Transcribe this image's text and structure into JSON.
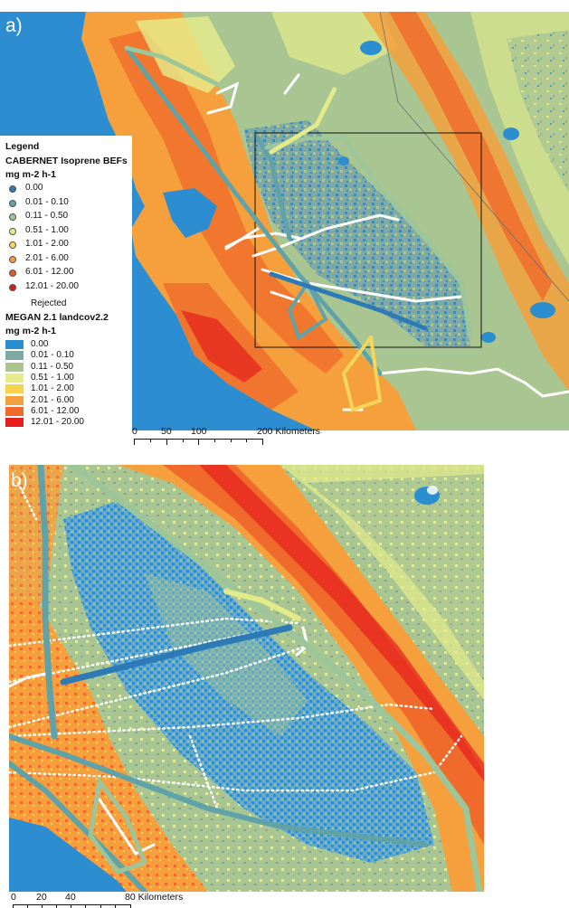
{
  "panels": [
    {
      "label": "a)"
    },
    {
      "label": "b)"
    }
  ],
  "legend": {
    "heading": "Legend",
    "cabernet_title": "CABERNET Isoprene BEFs",
    "cabernet_units": "mg m-2 h-1",
    "cabernet_classes": [
      {
        "label": "0.00",
        "color": "#2c7bb6"
      },
      {
        "label": "0.01 - 0.10",
        "color": "#5fa2a8"
      },
      {
        "label": "0.11 - 0.50",
        "color": "#9cc69a"
      },
      {
        "label": "0.51 - 1.00",
        "color": "#e3ea8a"
      },
      {
        "label": "1.01 - 2.00",
        "color": "#f8d65a"
      },
      {
        "label": "2.01 - 6.00",
        "color": "#f59a3f"
      },
      {
        "label": "6.01 - 12.00",
        "color": "#e35a2a"
      },
      {
        "label": "12.01 - 20.00",
        "color": "#d7191c"
      }
    ],
    "rejected_label": "Rejected",
    "megan_title": "MEGAN 2.1 landcov2.2",
    "megan_units": "mg m-2 h-1",
    "megan_classes": [
      {
        "label": "0.00",
        "color": "#2b8fcf"
      },
      {
        "label": "0.01 - 0.10",
        "color": "#7fa9a7"
      },
      {
        "label": "0.11 - 0.50",
        "color": "#a9c592"
      },
      {
        "label": "0.51 - 1.00",
        "color": "#e6ec8c"
      },
      {
        "label": "1.01 - 2.00",
        "color": "#fad34e"
      },
      {
        "label": "2.01 - 6.00",
        "color": "#f5a03c"
      },
      {
        "label": "6.01 - 12.00",
        "color": "#ef6a2b"
      },
      {
        "label": "12.01 - 20.00",
        "color": "#e51e1e"
      }
    ]
  },
  "scalebar_a": {
    "ticks": [
      "0",
      "50",
      "100",
      "200 Kilometers"
    ]
  },
  "scalebar_b": {
    "ticks": [
      "0",
      "20",
      "40",
      "80 Kilometers"
    ]
  },
  "colors": {
    "ocean": "#2c8ed1",
    "flight_track": "#ffffff"
  }
}
